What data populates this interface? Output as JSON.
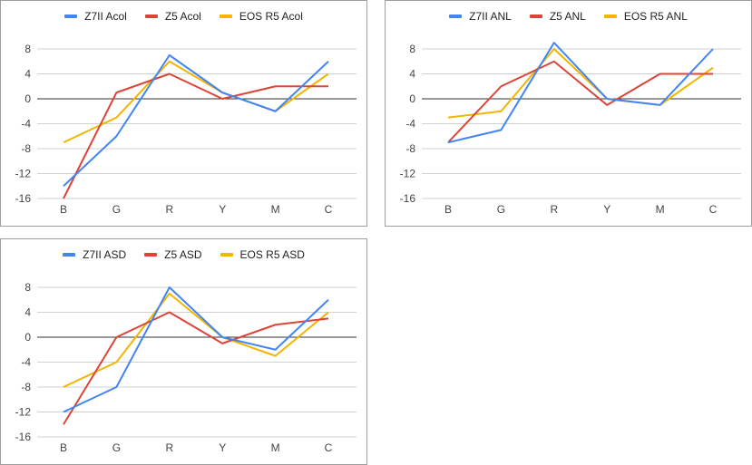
{
  "chart_data": [
    {
      "type": "line",
      "categories": [
        "B",
        "G",
        "R",
        "Y",
        "M",
        "C"
      ],
      "ylim": [
        -16,
        8
      ],
      "yticks": [
        8,
        4,
        0,
        -4,
        -8,
        -12,
        -16
      ],
      "ytick_labels": [
        "8",
        "4",
        "0",
        "-4",
        "-8",
        "-12",
        "-16"
      ],
      "grid": true,
      "legend": "top",
      "series": [
        {
          "name": "Z7II Acol",
          "color": "#4285f4",
          "values": [
            -14,
            -6,
            7,
            1,
            -2,
            6
          ]
        },
        {
          "name": "Z5 Acol",
          "color": "#db4437",
          "values": [
            -16,
            1,
            4,
            0,
            2,
            2
          ]
        },
        {
          "name": "EOS R5 Acol",
          "color": "#f4b400",
          "values": [
            -7,
            -3,
            6,
            1,
            -2,
            4
          ]
        }
      ]
    },
    {
      "type": "line",
      "categories": [
        "B",
        "G",
        "R",
        "Y",
        "M",
        "C"
      ],
      "ylim": [
        -16,
        8
      ],
      "yticks": [
        8,
        4,
        0,
        -4,
        -8,
        -12,
        -16
      ],
      "ytick_labels": [
        "8",
        "4",
        "0",
        "-4",
        "-8",
        "-12",
        "-16"
      ],
      "grid": true,
      "legend": "top",
      "series": [
        {
          "name": "Z7II ANL",
          "color": "#4285f4",
          "values": [
            -7,
            -5,
            9,
            0,
            -1,
            8
          ]
        },
        {
          "name": "Z5 ANL",
          "color": "#db4437",
          "values": [
            -7,
            2,
            6,
            -1,
            4,
            4
          ]
        },
        {
          "name": "EOS R5 ANL",
          "color": "#f4b400",
          "values": [
            -3,
            -2,
            8,
            0,
            -1,
            5
          ]
        }
      ]
    },
    {
      "type": "line",
      "categories": [
        "B",
        "G",
        "R",
        "Y",
        "M",
        "C"
      ],
      "ylim": [
        -16,
        8
      ],
      "yticks": [
        8,
        4,
        0,
        -4,
        -8,
        -12,
        -16
      ],
      "ytick_labels": [
        "8",
        "4",
        "0",
        "-4",
        "-8",
        "-12",
        "-16"
      ],
      "grid": true,
      "legend": "top",
      "series": [
        {
          "name": "Z7II ASD",
          "color": "#4285f4",
          "values": [
            -12,
            -8,
            8,
            0,
            -2,
            6
          ]
        },
        {
          "name": "Z5 ASD",
          "color": "#db4437",
          "values": [
            -14,
            0,
            4,
            -1,
            2,
            3
          ]
        },
        {
          "name": "EOS R5 ASD",
          "color": "#f4b400",
          "values": [
            -8,
            -4,
            7,
            0,
            -3,
            4
          ]
        }
      ]
    }
  ]
}
